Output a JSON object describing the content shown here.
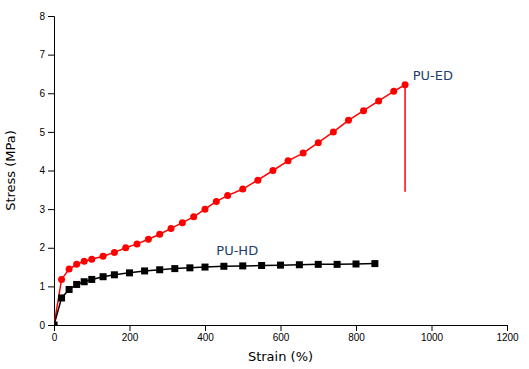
{
  "chart_data": {
    "type": "line",
    "xlabel": "Strain (%)",
    "ylabel": "Stress (MPa)",
    "series": [
      {
        "color": "#ff0000",
        "marker": "circle",
        "line_style": "solid",
        "x": [
          0,
          20,
          40,
          60,
          80,
          100,
          130,
          160,
          190,
          220,
          250,
          280,
          310,
          340,
          370,
          400,
          430,
          460,
          500,
          540,
          580,
          620,
          660,
          700,
          740,
          780,
          820,
          860,
          900,
          930
        ],
        "values": [
          0,
          1.18,
          1.45,
          1.57,
          1.65,
          1.7,
          1.78,
          1.88,
          2.0,
          2.1,
          2.22,
          2.35,
          2.5,
          2.65,
          2.8,
          3.0,
          3.2,
          3.35,
          3.52,
          3.75,
          4.0,
          4.25,
          4.45,
          4.72,
          5.0,
          5.3,
          5.55,
          5.8,
          6.05,
          6.22
        ]
      },
      {
        "color": "#000000",
        "marker": "square",
        "line_style": "solid",
        "x": [
          0,
          20,
          40,
          60,
          80,
          100,
          130,
          160,
          200,
          240,
          280,
          320,
          360,
          400,
          450,
          500,
          550,
          600,
          650,
          700,
          750,
          800,
          850
        ],
        "values": [
          0,
          0.7,
          0.92,
          1.05,
          1.12,
          1.18,
          1.25,
          1.3,
          1.35,
          1.4,
          1.43,
          1.46,
          1.48,
          1.5,
          1.52,
          1.53,
          1.54,
          1.55,
          1.56,
          1.57,
          1.57,
          1.58,
          1.59
        ]
      }
    ],
    "drop_line": {
      "x": 930,
      "y_top": 6.22,
      "y_bottom": 3.45,
      "color": "#ff0000"
    },
    "annotations": [
      {
        "text": "PU-ED",
        "x": 950,
        "y": 6.35,
        "color": "#1c3f6e"
      },
      {
        "text": "PU-HD",
        "x": 430,
        "y": 1.8,
        "color": "#1c3f6e"
      }
    ],
    "xlim": [
      0,
      1200
    ],
    "ylim": [
      0,
      8
    ],
    "xticks": [
      0,
      200,
      400,
      600,
      800,
      1000,
      1200
    ],
    "yticks": [
      0,
      1,
      2,
      3,
      4,
      5,
      6,
      7,
      8
    ],
    "grid": false
  }
}
